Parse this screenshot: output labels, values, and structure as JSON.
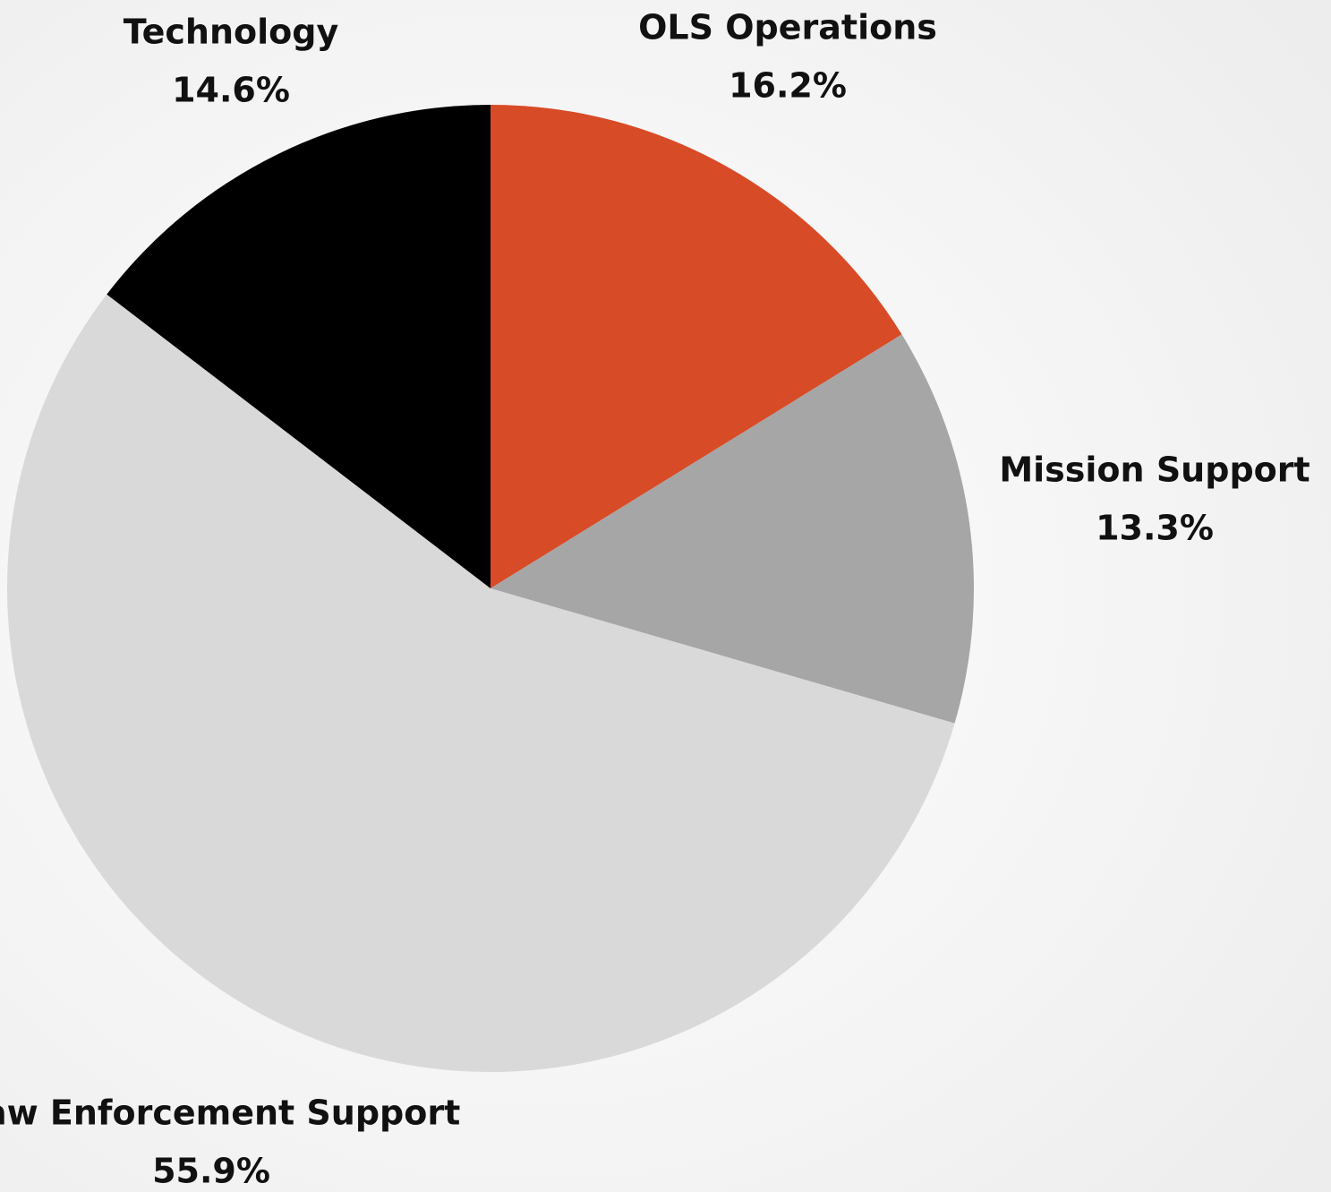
{
  "chart_data": {
    "type": "pie",
    "categories": [
      "OLS Operations",
      "Mission Support",
      "Law Enforcement Support",
      "Technology"
    ],
    "values": [
      16.2,
      13.3,
      55.9,
      14.6
    ],
    "value_labels": [
      "16.2%",
      "13.3%",
      "55.9%",
      "14.6%"
    ],
    "colors": [
      "#d84b27",
      "#a6a6a6",
      "#d9d9d9",
      "#000000"
    ]
  }
}
